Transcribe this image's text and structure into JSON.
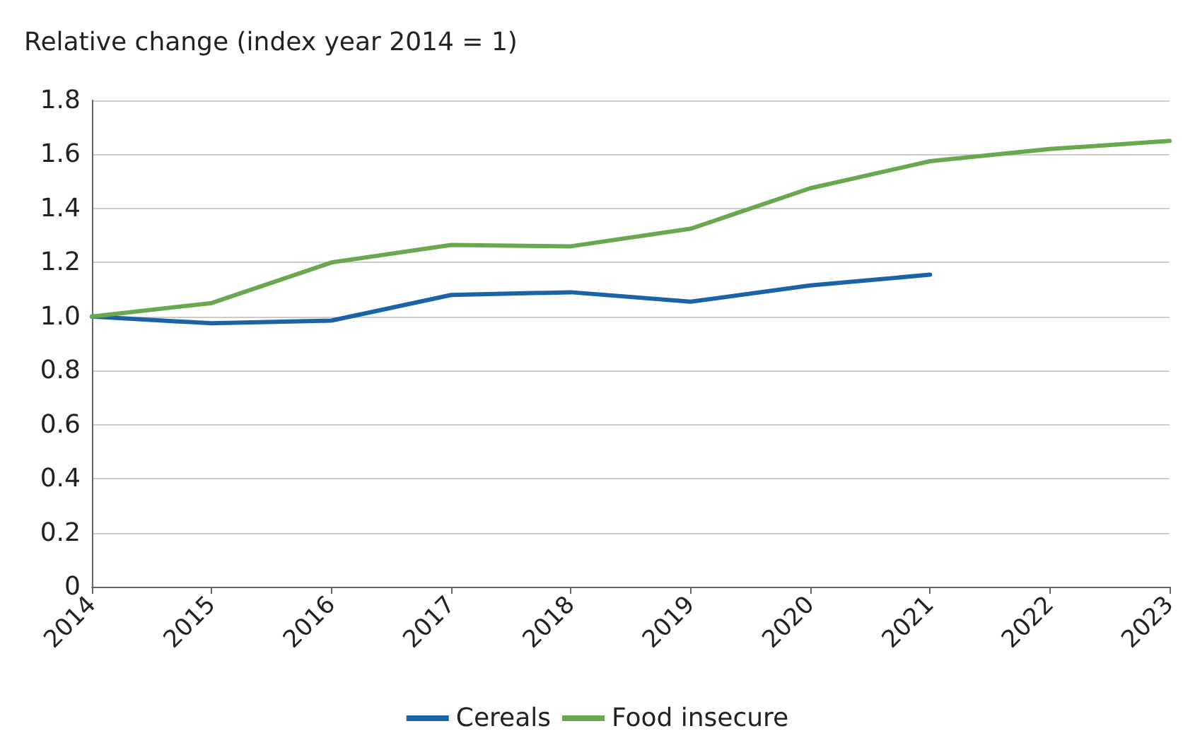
{
  "chart_data": {
    "type": "line",
    "ylabel": "Relative change (index year 2014 = 1)",
    "categories": [
      "2014",
      "2015",
      "2016",
      "2017",
      "2018",
      "2019",
      "2020",
      "2021",
      "2022",
      "2023"
    ],
    "series": [
      {
        "name": "Cereals",
        "color": "#1a63a8",
        "values": [
          1.0,
          0.975,
          0.985,
          1.08,
          1.09,
          1.055,
          1.115,
          1.155,
          null,
          null
        ]
      },
      {
        "name": "Food insecure",
        "color": "#6aa84f",
        "values": [
          1.0,
          1.05,
          1.2,
          1.265,
          1.26,
          1.325,
          1.475,
          1.575,
          1.62,
          1.65
        ]
      }
    ],
    "ylim": [
      0,
      1.8
    ],
    "yticks": [
      0,
      0.2,
      0.4,
      0.6,
      0.8,
      {
        "value": 1,
        "label": "1.0"
      },
      1.2,
      1.4,
      1.6,
      1.8
    ],
    "grid": "y",
    "legend": "bottom",
    "marker": "none",
    "line_style": "solid"
  }
}
